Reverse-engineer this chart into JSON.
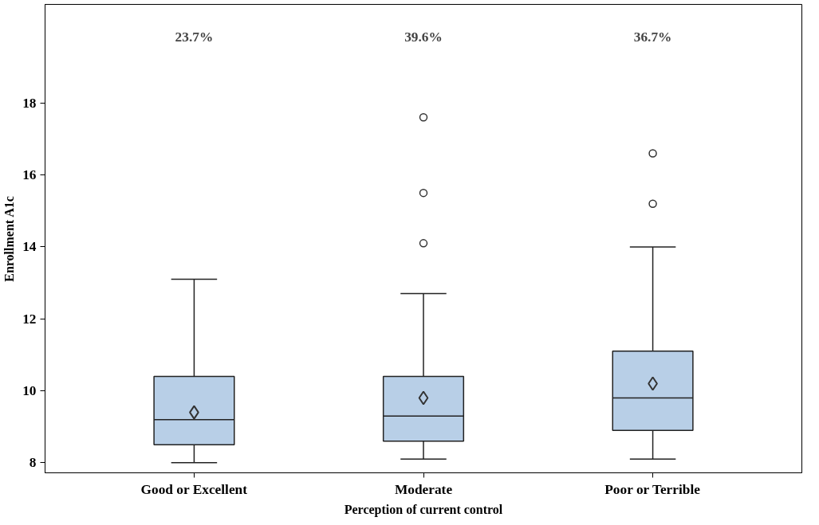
{
  "chart_data": {
    "type": "box",
    "xlabel": "Perception of current control",
    "ylabel": "Enrollment A1c",
    "categories": [
      "Good or Excellent",
      "Moderate",
      "Poor or Terrible"
    ],
    "color": "#b8cfe7",
    "boxes": [
      {
        "low": 8.0,
        "q1": 8.5,
        "median": 9.2,
        "q3": 10.4,
        "high": 13.1,
        "mean": 9.4
      },
      {
        "low": 8.1,
        "q1": 8.6,
        "median": 9.3,
        "q3": 10.4,
        "high": 12.7,
        "mean": 9.8,
        "outliers": [
          14.1,
          15.5,
          17.6
        ]
      },
      {
        "low": 8.1,
        "q1": 8.9,
        "median": 9.8,
        "q3": 11.1,
        "high": 14.0,
        "mean": 10.2,
        "outliers": [
          15.2,
          16.6
        ]
      }
    ],
    "annotations": [
      "23.7%",
      "39.6%",
      "36.7%"
    ],
    "ylim": [
      7.72,
      20.74
    ],
    "yticks": [
      8,
      10,
      12,
      14,
      16,
      18
    ],
    "grid": false
  }
}
